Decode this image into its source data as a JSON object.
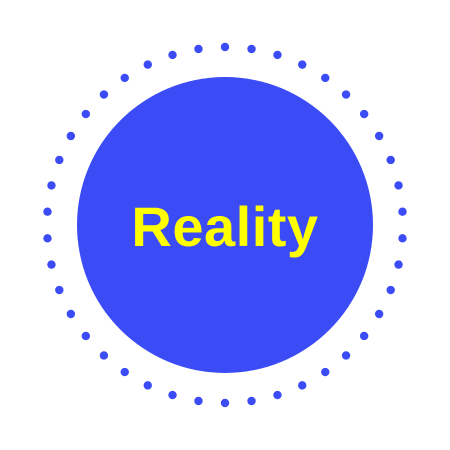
{
  "main": {
    "title": "Reality"
  },
  "colors": {
    "background": "#FFFFFF",
    "circle_fill": "#3B4BF5",
    "dot_ring": "#3B4BF5",
    "text": "#FFFF00"
  },
  "icons": {
    "badge": "dotted-ring-circle-badge"
  }
}
